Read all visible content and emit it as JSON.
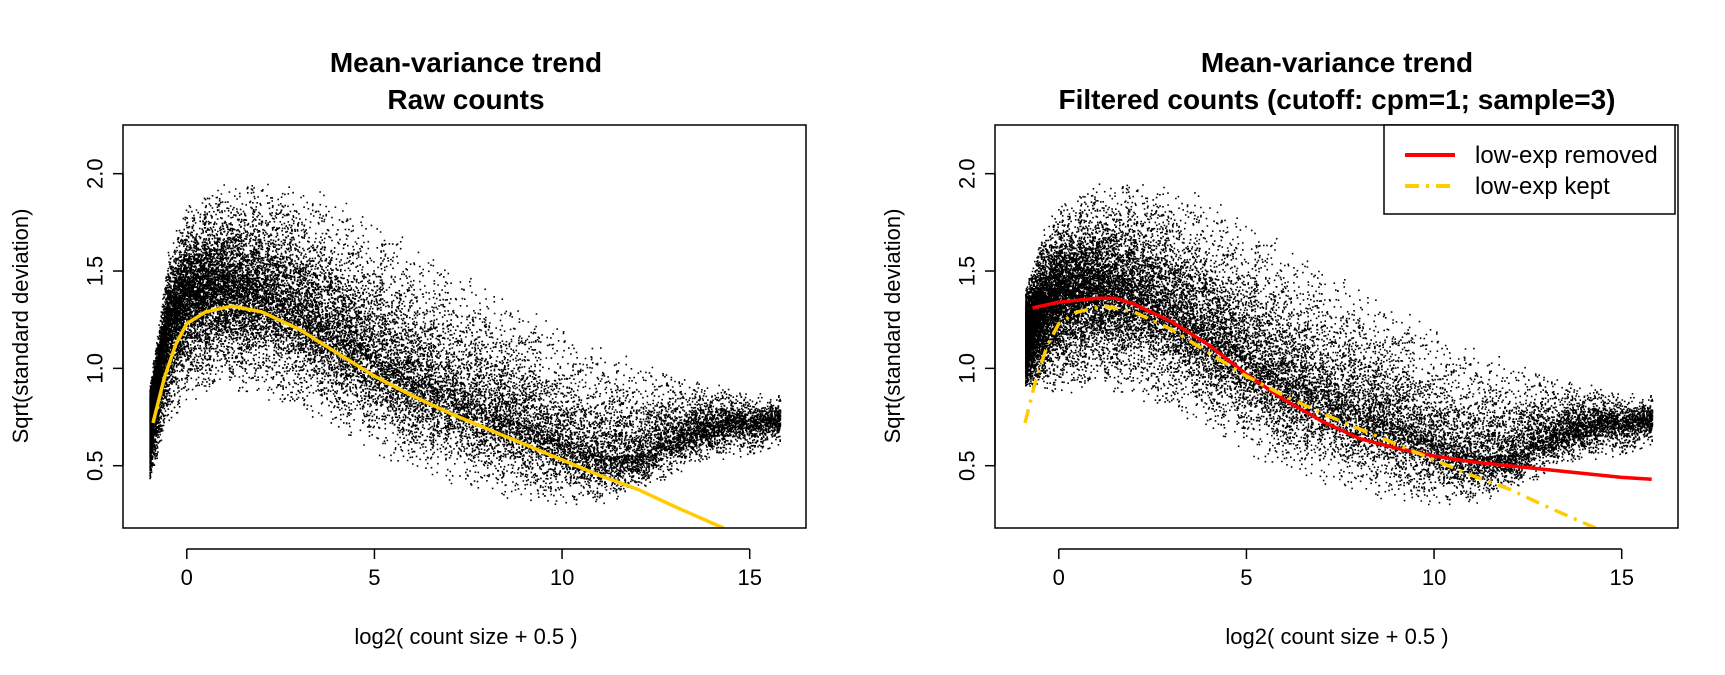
{
  "chart_data": [
    {
      "type": "scatter",
      "title": "Mean-variance trend",
      "subtitle": "Raw counts",
      "xlabel": "log2( count size + 0.5 )",
      "ylabel": "Sqrt(standard deviation)",
      "xlim": [
        -1.7,
        16.5
      ],
      "ylim": [
        0.18,
        2.25
      ],
      "xticks": [
        0,
        5,
        10,
        15
      ],
      "yticks": [
        0.5,
        1.0,
        1.5,
        2.0
      ],
      "xtick_labels": [
        "0",
        "5",
        "10",
        "15"
      ],
      "ytick_labels": [
        "0.5",
        "1.0",
        "1.5",
        "2.0"
      ],
      "grid": false,
      "point_color": "#000000",
      "scatter_envelope": {
        "x": [
          -1.0,
          -0.5,
          0,
          1,
          2,
          3,
          4,
          5,
          6,
          7,
          8,
          9,
          10,
          11,
          12,
          13,
          14,
          15,
          15.8
        ],
        "y_low": [
          0.42,
          0.7,
          0.82,
          0.88,
          0.84,
          0.76,
          0.66,
          0.56,
          0.47,
          0.4,
          0.34,
          0.3,
          0.27,
          0.28,
          0.35,
          0.45,
          0.52,
          0.55,
          0.6
        ],
        "y_high": [
          0.9,
          1.62,
          1.85,
          1.95,
          1.98,
          1.96,
          1.9,
          1.8,
          1.68,
          1.56,
          1.44,
          1.32,
          1.22,
          1.14,
          1.06,
          1.0,
          0.92,
          0.88,
          0.86
        ],
        "y_center": [
          0.72,
          1.25,
          1.38,
          1.42,
          1.38,
          1.3,
          1.18,
          1.06,
          0.95,
          0.86,
          0.78,
          0.7,
          0.62,
          0.55,
          0.55,
          0.65,
          0.7,
          0.72,
          0.74
        ]
      },
      "series": [
        {
          "type": "line",
          "color": "#FFCC00",
          "dash": "solid",
          "x": [
            -0.9,
            -0.6,
            -0.3,
            0,
            0.5,
            1.2,
            2,
            3,
            4,
            5,
            6,
            7,
            8,
            9,
            10,
            11,
            12,
            13,
            14.3
          ],
          "y": [
            0.72,
            0.95,
            1.12,
            1.23,
            1.29,
            1.32,
            1.29,
            1.2,
            1.08,
            0.96,
            0.86,
            0.77,
            0.69,
            0.61,
            0.53,
            0.45,
            0.38,
            0.29,
            0.18
          ]
        }
      ]
    },
    {
      "type": "scatter",
      "title": "Mean-variance trend",
      "subtitle": "Filtered counts (cutoff: cpm=1; sample=3)",
      "xlabel": "log2( count size + 0.5 )",
      "ylabel": "Sqrt(standard deviation)",
      "xlim": [
        -1.7,
        16.5
      ],
      "ylim": [
        0.18,
        2.25
      ],
      "xticks": [
        0,
        5,
        10,
        15
      ],
      "yticks": [
        0.5,
        1.0,
        1.5,
        2.0
      ],
      "xtick_labels": [
        "0",
        "5",
        "10",
        "15"
      ],
      "ytick_labels": [
        "0.5",
        "1.0",
        "1.5",
        "2.0"
      ],
      "grid": false,
      "legend_position": "top-right",
      "point_color": "#000000",
      "scatter_envelope": {
        "x": [
          -0.9,
          -0.5,
          0,
          1,
          2,
          3,
          4,
          5,
          6,
          7,
          8,
          9,
          10,
          11,
          12,
          13,
          14,
          15,
          15.8
        ],
        "y_low": [
          0.9,
          0.88,
          0.86,
          0.88,
          0.84,
          0.76,
          0.66,
          0.56,
          0.47,
          0.4,
          0.34,
          0.3,
          0.27,
          0.28,
          0.35,
          0.45,
          0.52,
          0.55,
          0.6
        ],
        "y_high": [
          1.4,
          1.7,
          1.85,
          1.95,
          1.98,
          1.96,
          1.9,
          1.8,
          1.68,
          1.56,
          1.44,
          1.32,
          1.22,
          1.14,
          1.06,
          1.0,
          0.92,
          0.88,
          0.86
        ],
        "y_center": [
          1.15,
          1.3,
          1.38,
          1.42,
          1.38,
          1.3,
          1.18,
          1.06,
          0.95,
          0.86,
          0.78,
          0.7,
          0.62,
          0.55,
          0.55,
          0.65,
          0.7,
          0.72,
          0.74
        ]
      },
      "series": [
        {
          "name": "low-exp removed",
          "type": "line",
          "color": "#FF0000",
          "dash": "solid",
          "x": [
            -0.7,
            0,
            1,
            1.5,
            2,
            3,
            4,
            5,
            6,
            7,
            8,
            9,
            10,
            11,
            12,
            13,
            14,
            15,
            15.8
          ],
          "y": [
            1.31,
            1.34,
            1.36,
            1.36,
            1.33,
            1.24,
            1.12,
            0.97,
            0.84,
            0.73,
            0.64,
            0.59,
            0.55,
            0.52,
            0.5,
            0.48,
            0.46,
            0.44,
            0.43
          ]
        },
        {
          "name": "low-exp kept",
          "type": "line",
          "color": "#FFCC00",
          "dash": "dashdot",
          "x": [
            -0.9,
            -0.6,
            -0.3,
            0,
            0.5,
            1.2,
            2,
            3,
            4,
            5,
            6,
            7,
            8,
            9,
            10,
            11,
            12,
            13,
            14.3
          ],
          "y": [
            0.72,
            0.95,
            1.12,
            1.23,
            1.29,
            1.32,
            1.29,
            1.2,
            1.08,
            0.96,
            0.86,
            0.77,
            0.69,
            0.61,
            0.53,
            0.45,
            0.38,
            0.29,
            0.18
          ]
        }
      ]
    }
  ]
}
